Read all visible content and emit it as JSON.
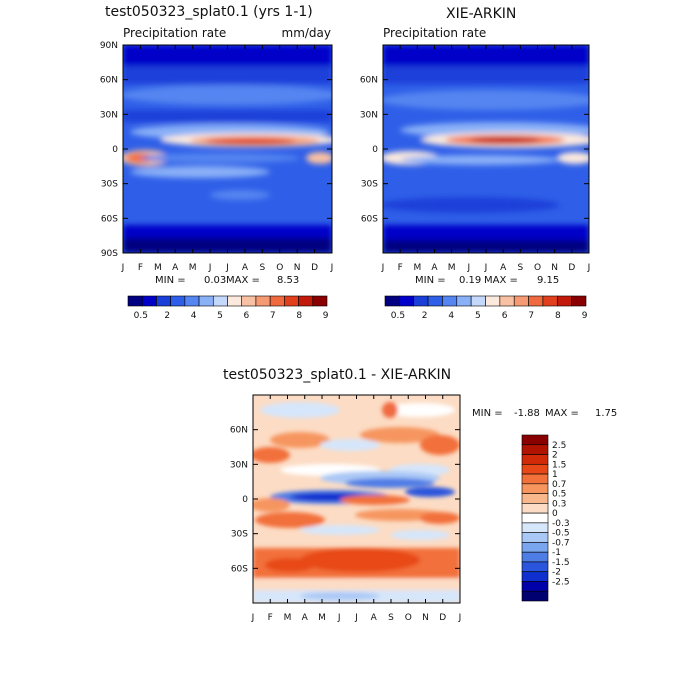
{
  "chart_data": [
    {
      "type": "heatmap",
      "title": "test050323_splat0.1 (yrs 1-1)",
      "subtitle": "Precipitation rate",
      "units": "mm/day",
      "x_tick_labels": [
        "J",
        "F",
        "M",
        "A",
        "M",
        "J",
        "J",
        "A",
        "S",
        "O",
        "N",
        "D",
        "J"
      ],
      "y_tick_labels": [
        "90N",
        "60N",
        "30N",
        "0",
        "30S",
        "60S",
        "90S"
      ],
      "ylim": [
        -90,
        90
      ],
      "min_label": "MIN =",
      "min": "0.03",
      "max_label": "MAX =",
      "max": "8.53",
      "colorbar_tick_labels": [
        "0.5",
        "2",
        "4",
        "5",
        "6",
        "7",
        "8",
        "9"
      ],
      "colorbar_colors": [
        "#000080",
        "#0000c8",
        "#1a3fd9",
        "#2f5fe8",
        "#5585f0",
        "#8ab0f7",
        "#c4d8fb",
        "#fbe9dd",
        "#f9c1a3",
        "#f59a72",
        "#f06a40",
        "#e0401c",
        "#c21a0a",
        "#8a0000"
      ]
    },
    {
      "type": "heatmap",
      "title": "XIE-ARKIN",
      "subtitle": "Precipitation rate",
      "x_tick_labels": [
        "J",
        "F",
        "M",
        "A",
        "M",
        "J",
        "J",
        "A",
        "S",
        "O",
        "N",
        "D",
        "J"
      ],
      "y_tick_labels": [
        "60N",
        "30N",
        "0",
        "30S",
        "60S"
      ],
      "ylim": [
        -90,
        90
      ],
      "min_label": "MIN =",
      "min": "0.19",
      "max_label": "MAX =",
      "max": "9.15",
      "colorbar_tick_labels": [
        "0.5",
        "2",
        "4",
        "5",
        "6",
        "7",
        "8",
        "9"
      ],
      "colorbar_colors": [
        "#000080",
        "#0000c8",
        "#1a3fd9",
        "#2f5fe8",
        "#5585f0",
        "#8ab0f7",
        "#c4d8fb",
        "#fbe9dd",
        "#f9c1a3",
        "#f59a72",
        "#f06a40",
        "#e0401c",
        "#c21a0a",
        "#8a0000"
      ]
    },
    {
      "type": "heatmap",
      "title": "test050323_splat0.1 - XIE-ARKIN",
      "x_tick_labels": [
        "J",
        "F",
        "M",
        "A",
        "M",
        "J",
        "J",
        "A",
        "S",
        "O",
        "N",
        "D",
        "J"
      ],
      "y_tick_labels": [
        "60N",
        "30N",
        "0",
        "30S",
        "60S"
      ],
      "ylim": [
        -90,
        90
      ],
      "min_label": "MIN =",
      "min": "-1.88",
      "max_label": "MAX =",
      "max": "1.75",
      "colorbar_tick_labels": [
        "2.5",
        "2",
        "1.5",
        "1",
        "0.7",
        "0.5",
        "0.3",
        "0",
        "-0.3",
        "-0.5",
        "-0.7",
        "-1",
        "-1.5",
        "-2",
        "-2.5"
      ],
      "colorbar_colors": [
        "#8a0000",
        "#b01400",
        "#d02a08",
        "#e84818",
        "#f2703a",
        "#f6955e",
        "#f9b88c",
        "#fcdcc4",
        "#ffffff",
        "#d6e6fb",
        "#aac8f5",
        "#7aa6ef",
        "#4f7de6",
        "#2a55dc",
        "#0f2fce",
        "#0000a8",
        "#000070"
      ]
    }
  ]
}
